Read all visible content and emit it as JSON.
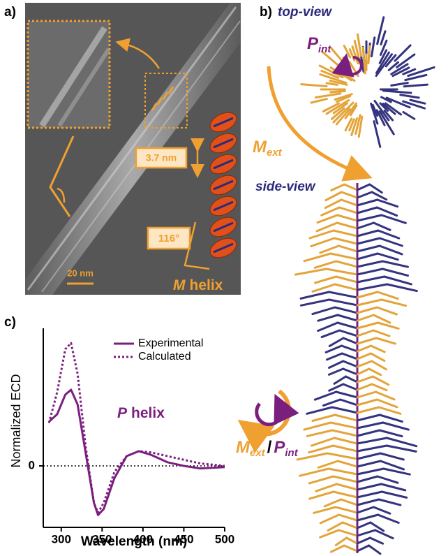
{
  "panel_a": {
    "label": "a)",
    "scale_bar": "20 nm",
    "pitch": "3.7 nm",
    "angle": "116°",
    "helix_symbol": "M",
    "helix_word": "helix"
  },
  "panel_b": {
    "label": "b)",
    "top_view": "top-view",
    "side_view": "side-view",
    "p_int": {
      "symbol": "P",
      "subscript": "int"
    },
    "m_ext": {
      "symbol": "M",
      "subscript": "ext"
    },
    "combined": {
      "m": "M",
      "m_sub": "ext",
      "separator": "/",
      "p": "P",
      "p_sub": "int"
    }
  },
  "panel_c": {
    "label": "c)",
    "annotation_symbol": "P",
    "annotation_word": "helix"
  },
  "chart_data": {
    "type": "line",
    "xlabel": "Wavelength (nm)",
    "ylabel": "Normalized ECD",
    "x": [
      285,
      295,
      305,
      312,
      320,
      330,
      340,
      345,
      352,
      365,
      380,
      395,
      410,
      430,
      450,
      470,
      500
    ],
    "series": [
      {
        "name": "Experimental",
        "color": "#7b1f7f",
        "dash": "solid",
        "values": [
          0.36,
          0.42,
          0.58,
          0.62,
          0.5,
          0.1,
          -0.3,
          -0.4,
          -0.35,
          -0.1,
          0.08,
          0.12,
          0.09,
          0.03,
          0.0,
          -0.02,
          -0.01
        ]
      },
      {
        "name": "Calculated",
        "color": "#7b1f7f",
        "dash": "dotted",
        "values": [
          0.35,
          0.6,
          0.95,
          1.0,
          0.75,
          0.15,
          -0.3,
          -0.38,
          -0.3,
          -0.05,
          0.08,
          0.12,
          0.11,
          0.08,
          0.05,
          0.02,
          0.0
        ]
      }
    ],
    "xlim": [
      278,
      500
    ],
    "ylim": [
      -0.5,
      1.12
    ],
    "xticks": [
      300,
      350,
      400,
      450,
      500
    ],
    "yticks": [
      0
    ],
    "zero_line": true
  }
}
